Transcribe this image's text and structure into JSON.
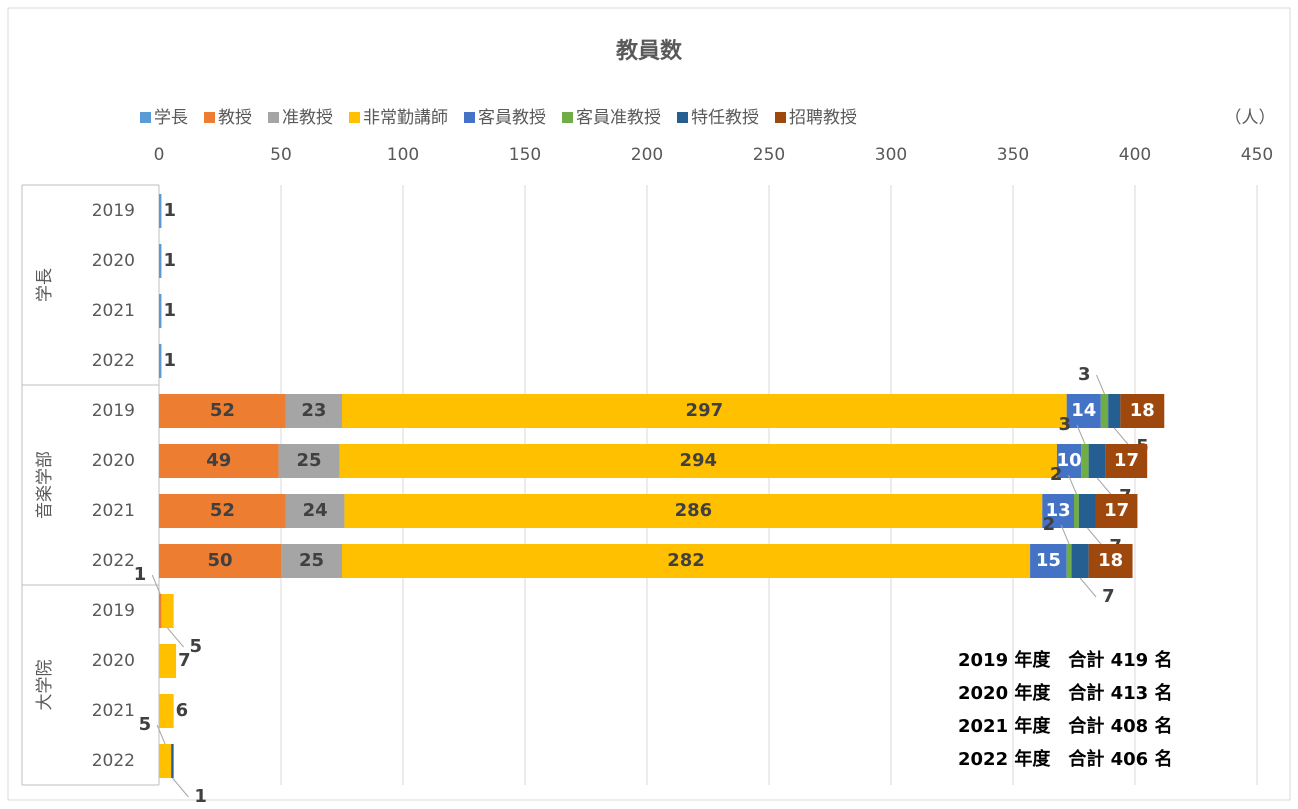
{
  "chart_data": {
    "type": "stacked_bar_horizontal",
    "title": "教員数",
    "unit_label": "（人）",
    "category_groups": [
      "学長",
      "音楽学部",
      "大学院"
    ],
    "categories": [
      "2019",
      "2020",
      "2021",
      "2022",
      "2019",
      "2020",
      "2021",
      "2022",
      "2019",
      "2020",
      "2021",
      "2022"
    ],
    "series": [
      {
        "name": "学長",
        "color": "#5b9bd5",
        "values": [
          1,
          1,
          1,
          1,
          null,
          null,
          null,
          null,
          null,
          null,
          null,
          null
        ]
      },
      {
        "name": "教授",
        "color": "#ed7d31",
        "values": [
          null,
          null,
          null,
          null,
          52,
          49,
          52,
          50,
          1,
          null,
          null,
          null
        ]
      },
      {
        "name": "准教授",
        "color": "#a5a5a5",
        "values": [
          null,
          null,
          null,
          null,
          23,
          25,
          24,
          25,
          null,
          null,
          null,
          null
        ]
      },
      {
        "name": "非常勤講師",
        "color": "#ffc000",
        "values": [
          null,
          null,
          null,
          null,
          297,
          294,
          286,
          282,
          5,
          7,
          6,
          5
        ]
      },
      {
        "name": "客員教授",
        "color": "#4472c4",
        "values": [
          null,
          null,
          null,
          null,
          14,
          10,
          13,
          15,
          null,
          null,
          null,
          null
        ]
      },
      {
        "name": "客員准教授",
        "color": "#70ad47",
        "values": [
          null,
          null,
          null,
          null,
          3,
          3,
          2,
          2,
          null,
          null,
          null,
          null
        ]
      },
      {
        "name": "特任教授",
        "color": "#255e91",
        "values": [
          null,
          null,
          null,
          null,
          5,
          7,
          7,
          7,
          null,
          null,
          null,
          1
        ]
      },
      {
        "name": "招聘教授",
        "color": "#9e480e",
        "values": [
          null,
          null,
          null,
          null,
          18,
          17,
          17,
          18,
          null,
          null,
          null,
          null
        ]
      }
    ],
    "xlim": [
      0,
      450
    ],
    "xticks": [
      0,
      50,
      100,
      150,
      200,
      250,
      300,
      350,
      400,
      450
    ],
    "grid": true,
    "legend": "top",
    "annotations": [
      "2019 年度　合計 419 名",
      "2020 年度　合計 413 名",
      "2021 年度　合計 408 名",
      "2022 年度　合計 406 名"
    ]
  }
}
